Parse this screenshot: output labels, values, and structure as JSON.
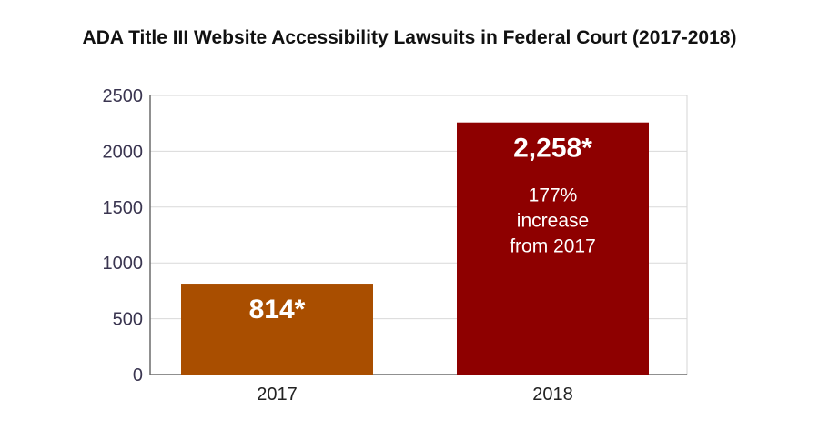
{
  "chart_data": {
    "type": "bar",
    "title": "ADA Title III Website Accessibility Lawsuits in Federal Court (2017-2018)",
    "xlabel": "",
    "ylabel": "",
    "categories": [
      "2017",
      "2018"
    ],
    "values": [
      814,
      2258
    ],
    "data_labels": [
      "814*",
      "2,258*"
    ],
    "annotations": [
      "",
      "177%|increase|from 2017"
    ],
    "bar_colors": [
      "#a94e00",
      "#8e0000"
    ],
    "ylim": [
      0,
      2500
    ],
    "yticks": [
      0,
      500,
      1000,
      1500,
      2000,
      2500
    ],
    "grid": true,
    "legend": "none"
  }
}
